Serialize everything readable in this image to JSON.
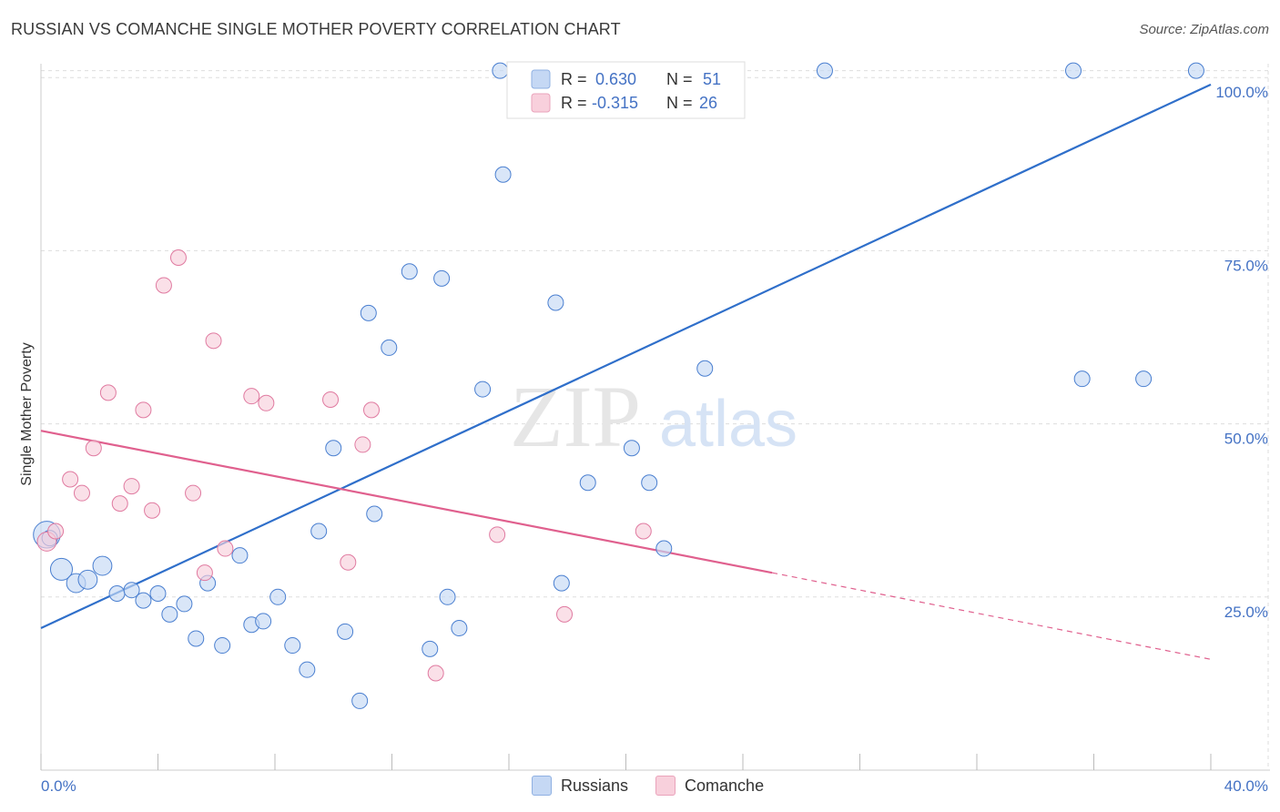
{
  "title": "RUSSIAN VS COMANCHE SINGLE MOTHER POVERTY CORRELATION CHART",
  "source": "Source: ZipAtlas.com",
  "watermark": {
    "zip": "ZIP",
    "atlas": "atlas"
  },
  "colors": {
    "blue": "#4a7fd0",
    "blue_fill": "#c5d8f4",
    "blue_line": "#2f6fca",
    "pink": "#e07aa0",
    "pink_fill": "#f8d0dc",
    "pink_line": "#e0608e",
    "axis_label": "#4472c4",
    "grid": "#dddddd"
  },
  "legend_top": {
    "rows": [
      {
        "r_label": "R =",
        "r_value": "0.630",
        "n_label": "N =",
        "n_value": "51"
      },
      {
        "r_label": "R =",
        "r_value": "-0.315",
        "n_label": "N =",
        "n_value": "26"
      }
    ]
  },
  "legend_bottom": [
    {
      "label": "Russians"
    },
    {
      "label": "Comanche"
    }
  ],
  "chart_data": {
    "type": "scatter",
    "title": "RUSSIAN VS COMANCHE SINGLE MOTHER POVERTY CORRELATION CHART",
    "xlabel": "",
    "ylabel": "Single Mother Poverty",
    "xlim": [
      0,
      40
    ],
    "ylim": [
      0,
      102
    ],
    "x_tick_labels": [
      "0.0%",
      "40.0%"
    ],
    "y_tick_labels": [
      "25.0%",
      "50.0%",
      "75.0%",
      "100.0%"
    ],
    "y_ticks": [
      25,
      50,
      75,
      100
    ],
    "grid": true,
    "series": [
      {
        "name": "Russians",
        "points": [
          [
            0.2,
            34,
            3
          ],
          [
            0.7,
            29,
            2
          ],
          [
            1.2,
            27,
            1.5
          ],
          [
            1.6,
            27.5,
            1.5
          ],
          [
            2.1,
            29.5,
            1.5
          ],
          [
            2.6,
            25.5,
            1
          ],
          [
            3.1,
            26,
            1
          ],
          [
            3.5,
            24.5,
            1
          ],
          [
            4.0,
            25.5,
            1
          ],
          [
            4.4,
            22.5,
            1
          ],
          [
            4.9,
            24,
            1
          ],
          [
            5.3,
            19,
            1
          ],
          [
            5.7,
            27,
            1
          ],
          [
            6.2,
            18,
            1
          ],
          [
            6.8,
            31,
            1
          ],
          [
            7.2,
            21,
            1
          ],
          [
            7.6,
            21.5,
            1
          ],
          [
            8.1,
            25,
            1
          ],
          [
            8.6,
            18,
            1
          ],
          [
            9.1,
            14.5,
            1
          ],
          [
            9.5,
            34.5,
            1
          ],
          [
            10.0,
            46.5,
            1
          ],
          [
            10.4,
            20,
            1
          ],
          [
            10.9,
            10,
            1
          ],
          [
            11.2,
            66,
            1
          ],
          [
            11.4,
            37,
            1
          ],
          [
            11.9,
            61,
            1
          ],
          [
            12.6,
            72,
            1
          ],
          [
            13.3,
            17.5,
            1
          ],
          [
            13.7,
            71,
            1
          ],
          [
            13.9,
            25,
            1
          ],
          [
            14.3,
            20.5,
            1
          ],
          [
            15.1,
            55,
            1
          ],
          [
            15.8,
            86,
            1
          ],
          [
            15.7,
            101,
            1
          ],
          [
            16.3,
            101,
            1
          ],
          [
            17.1,
            101,
            1
          ],
          [
            17.6,
            67.5,
            1
          ],
          [
            17.8,
            27,
            1
          ],
          [
            18.7,
            41.5,
            1
          ],
          [
            20.2,
            46.5,
            1
          ],
          [
            20.8,
            41.5,
            1
          ],
          [
            21.3,
            32,
            1
          ],
          [
            22.2,
            101,
            1
          ],
          [
            22.7,
            58,
            1
          ],
          [
            26.8,
            101,
            1
          ],
          [
            35.3,
            101,
            1
          ],
          [
            35.6,
            56.5,
            1
          ],
          [
            37.7,
            56.5,
            1
          ],
          [
            39.5,
            101,
            1
          ],
          [
            0.3,
            33.5,
            1
          ]
        ]
      },
      {
        "name": "Comanche",
        "points": [
          [
            0.2,
            33,
            1.5
          ],
          [
            0.5,
            34.5,
            1
          ],
          [
            1.0,
            42,
            1
          ],
          [
            1.4,
            40,
            1
          ],
          [
            1.8,
            46.5,
            1
          ],
          [
            2.3,
            54.5,
            1
          ],
          [
            2.7,
            38.5,
            1
          ],
          [
            3.1,
            41,
            1
          ],
          [
            3.5,
            52,
            1
          ],
          [
            3.8,
            37.5,
            1
          ],
          [
            4.2,
            70,
            1
          ],
          [
            4.7,
            74,
            1
          ],
          [
            5.2,
            40,
            1
          ],
          [
            5.6,
            28.5,
            1
          ],
          [
            5.9,
            62,
            1
          ],
          [
            6.3,
            32,
            1
          ],
          [
            7.2,
            54,
            1
          ],
          [
            7.7,
            53,
            1
          ],
          [
            9.9,
            53.5,
            1
          ],
          [
            10.5,
            30,
            1
          ],
          [
            11.0,
            47,
            1
          ],
          [
            11.3,
            52,
            1
          ],
          [
            13.5,
            14,
            1
          ],
          [
            15.6,
            34,
            1
          ],
          [
            17.9,
            22.5,
            1
          ],
          [
            20.6,
            34.5,
            1
          ]
        ]
      }
    ],
    "trendlines": [
      {
        "series": "Russians",
        "x": [
          0,
          40
        ],
        "y": [
          20.5,
          99
        ]
      },
      {
        "series": "Comanche",
        "x": [
          0,
          25
        ],
        "y": [
          49,
          28.5
        ],
        "dashed_x": [
          25,
          40
        ],
        "dashed_y": [
          28.5,
          16
        ]
      }
    ]
  }
}
